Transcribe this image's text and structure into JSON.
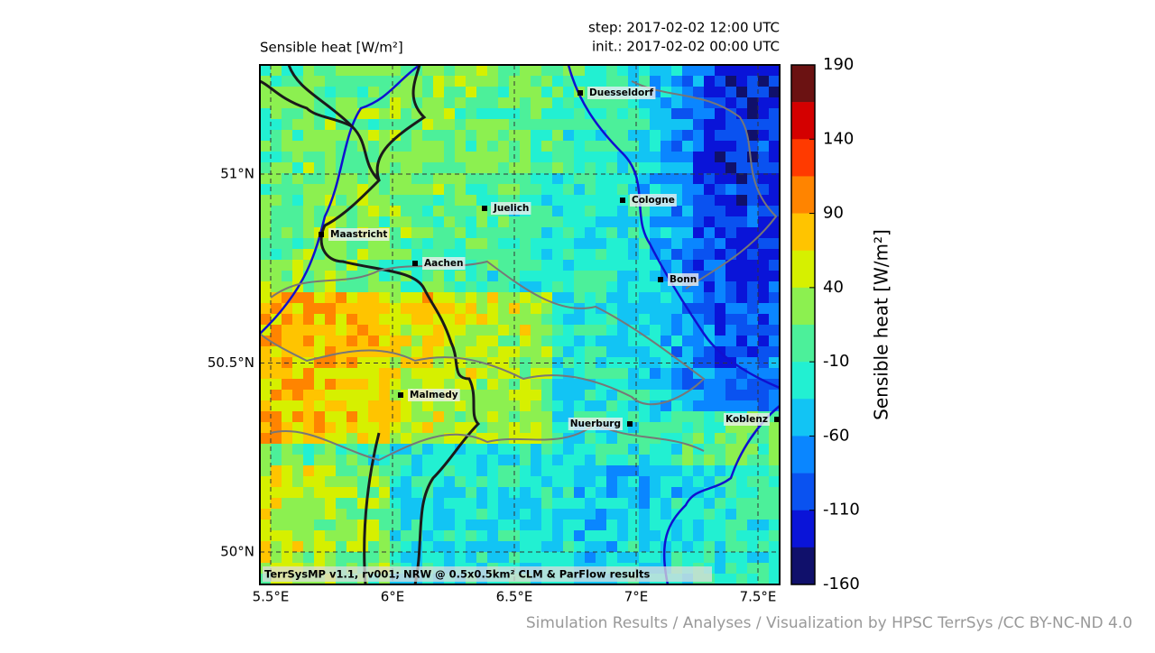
{
  "title": "Sensible heat [W/m²]",
  "step": "step: 2017-02-02 12:00 UTC",
  "init": "init.: 2017-02-02 00:00 UTC",
  "caption": "TerrSysMP v1.1, rv001; NRW @ 0.5x0.5km² CLM & ParFlow results",
  "credit": "Simulation Results / Analyses / Visualization by HPSC TerrSys /CC BY-NC-ND 4.0",
  "map": {
    "xticks": [
      {
        "value": 5.5,
        "label": "5.5°E"
      },
      {
        "value": 6,
        "label": "6°E"
      },
      {
        "value": 6.5,
        "label": "6.5°E"
      },
      {
        "value": 7,
        "label": "7°E"
      },
      {
        "value": 7.5,
        "label": "7.5°E"
      }
    ],
    "yticks": [
      {
        "value": 51,
        "label": "51°N"
      },
      {
        "value": 50.5,
        "label": "50.5°N"
      },
      {
        "value": 50,
        "label": "50°N"
      }
    ],
    "grid": true,
    "cities": [
      "Duesseldorf",
      "Cologne",
      "Juelich",
      "Maastricht",
      "Aachen",
      "Bonn",
      "Malmedy",
      "Nuerburg",
      "Koblenz"
    ]
  },
  "colorbar": {
    "label": "Sensible heat [W/m²]",
    "lim": [
      -160,
      190
    ],
    "ticks": [
      190,
      140,
      90,
      40,
      -10,
      -60,
      -110,
      -160
    ],
    "colors": [
      "#6b1212",
      "#d40000",
      "#ff3a00",
      "#ff8400",
      "#ffc400",
      "#d6f000",
      "#8cf050",
      "#4cf09a",
      "#22f0d2",
      "#12c4f4",
      "#0a86ff",
      "#0a52f0",
      "#0a14d8",
      "#10106b"
    ]
  }
}
